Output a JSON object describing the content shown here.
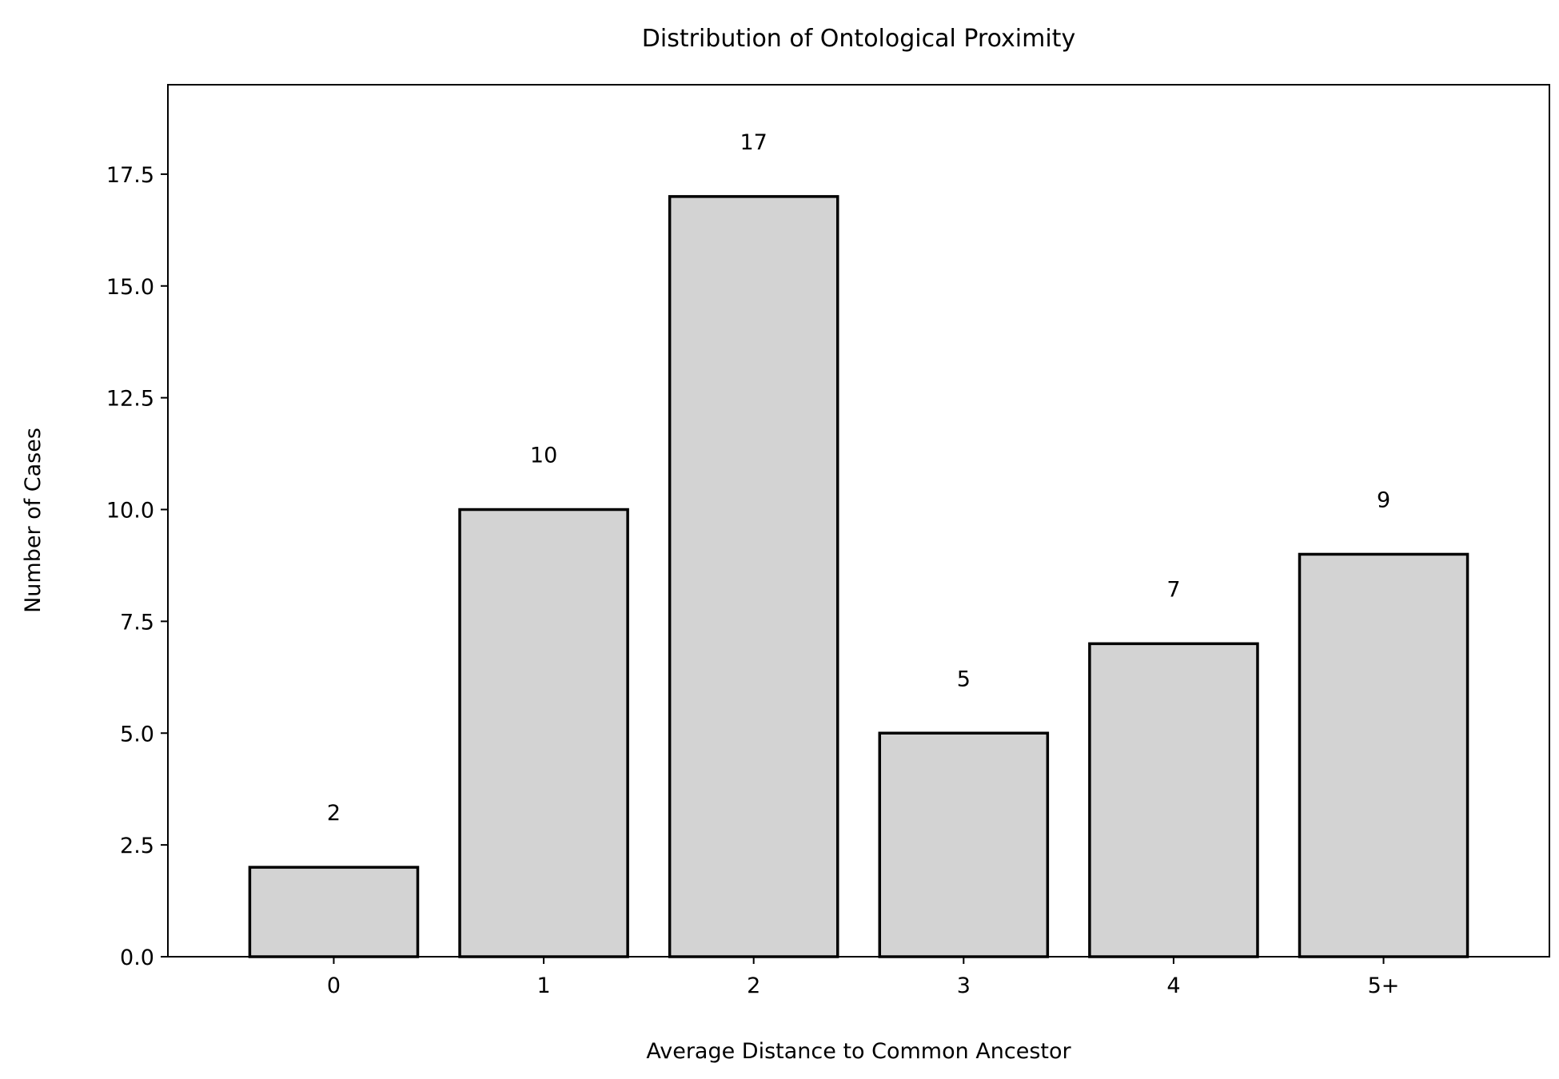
{
  "chart_data": {
    "type": "bar",
    "title": "Distribution of Ontological Proximity",
    "xlabel": "Average Distance to Common Ancestor",
    "ylabel": "Number of Cases",
    "categories": [
      "0",
      "1",
      "2",
      "3",
      "4",
      "5+"
    ],
    "values": [
      2,
      10,
      17,
      5,
      7,
      9
    ],
    "ylim": [
      0,
      19.5
    ],
    "yticks": [
      0.0,
      2.5,
      5.0,
      7.5,
      10.0,
      12.5,
      15.0,
      17.5
    ],
    "ytick_labels": [
      "0.0",
      "2.5",
      "5.0",
      "7.5",
      "10.0",
      "12.5",
      "15.0",
      "17.5"
    ],
    "bar_color": "#d3d3d3",
    "edge_color": "#000000",
    "grid": false,
    "legend": "none"
  }
}
